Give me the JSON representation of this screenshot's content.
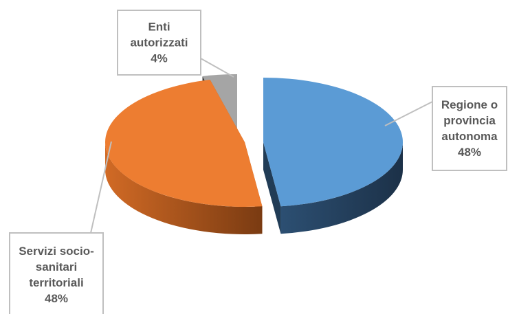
{
  "chart_data": {
    "type": "pie",
    "style": "3d-exploded",
    "title": "",
    "slices": [
      {
        "label_lines": [
          "Regione o",
          "provincia",
          "autonoma"
        ],
        "percent_label": "48%",
        "value": 48,
        "color": "#5B9BD5",
        "side_color": "#213c56"
      },
      {
        "label_lines": [
          "Servizi socio-",
          "sanitari",
          "territoriali"
        ],
        "percent_label": "48%",
        "value": 48,
        "color": "#ED7D31",
        "side_color": "#a3501a"
      },
      {
        "label_lines": [
          "Enti",
          "autorizzati"
        ],
        "percent_label": "4%",
        "value": 4,
        "color": "#A5A5A5",
        "side_color": "#3a3a3a"
      }
    ],
    "label_border_color": "#BFBFBF",
    "label_text_color": "#595959"
  }
}
